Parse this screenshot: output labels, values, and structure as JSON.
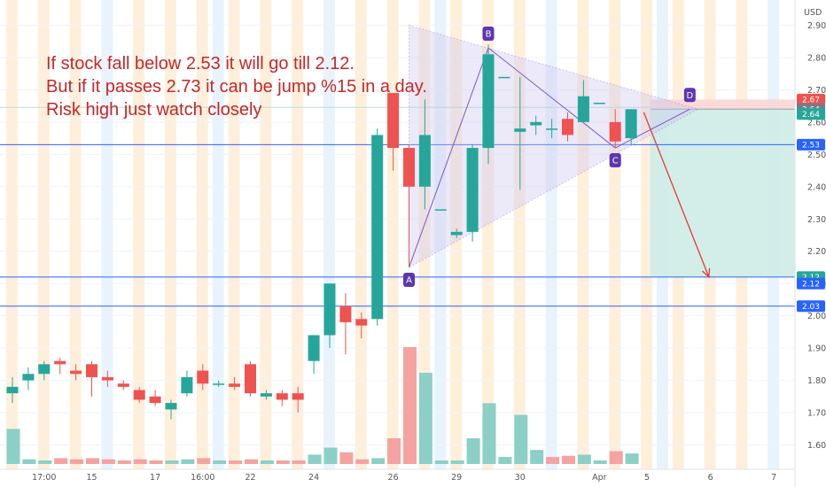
{
  "chart_data": {
    "type": "candlestick",
    "currency": "USD",
    "annotation": {
      "lines": [
        "If stock fall below 2.53 it will go till 2.12.",
        "But if it passes 2.73 it can be jump %15 in a day.",
        "Risk high just watch closely"
      ]
    },
    "ylim": [
      1.54,
      2.94
    ],
    "y_ticks": [
      "2.90",
      "2.80",
      "2.70",
      "2.60",
      "2.50",
      "2.40",
      "2.30",
      "2.20",
      "2.10",
      "2.00",
      "1.90",
      "1.80",
      "1.70",
      "1.60"
    ],
    "x_ticks": [
      {
        "i": 2,
        "label": "17:00"
      },
      {
        "i": 5,
        "label": "15"
      },
      {
        "i": 9,
        "label": "17"
      },
      {
        "i": 12,
        "label": "16:00"
      },
      {
        "i": 15,
        "label": "22"
      },
      {
        "i": 19,
        "label": "24"
      },
      {
        "i": 24,
        "label": "26"
      },
      {
        "i": 28,
        "label": "29"
      },
      {
        "i": 32,
        "label": "30"
      },
      {
        "i": 37,
        "label": "Apr"
      },
      {
        "i": 40,
        "label": "5"
      },
      {
        "i": 44,
        "label": "6"
      },
      {
        "i": 48,
        "label": "7"
      }
    ],
    "candles": [
      {
        "o": 1.76,
        "h": 1.81,
        "l": 1.73,
        "c": 1.78
      },
      {
        "o": 1.8,
        "h": 1.84,
        "l": 1.77,
        "c": 1.82
      },
      {
        "o": 1.82,
        "h": 1.86,
        "l": 1.8,
        "c": 1.85
      },
      {
        "o": 1.86,
        "h": 1.87,
        "l": 1.82,
        "c": 1.85
      },
      {
        "o": 1.83,
        "h": 1.85,
        "l": 1.8,
        "c": 1.82
      },
      {
        "o": 1.85,
        "h": 1.86,
        "l": 1.75,
        "c": 1.81
      },
      {
        "o": 1.81,
        "h": 1.83,
        "l": 1.78,
        "c": 1.8
      },
      {
        "o": 1.79,
        "h": 1.8,
        "l": 1.77,
        "c": 1.78
      },
      {
        "o": 1.77,
        "h": 1.78,
        "l": 1.73,
        "c": 1.74
      },
      {
        "o": 1.75,
        "h": 1.77,
        "l": 1.72,
        "c": 1.73
      },
      {
        "o": 1.71,
        "h": 1.74,
        "l": 1.68,
        "c": 1.73
      },
      {
        "o": 1.76,
        "h": 1.83,
        "l": 1.75,
        "c": 1.81
      },
      {
        "o": 1.83,
        "h": 1.85,
        "l": 1.77,
        "c": 1.79
      },
      {
        "o": 1.79,
        "h": 1.8,
        "l": 1.78,
        "c": 1.79
      },
      {
        "o": 1.79,
        "h": 1.81,
        "l": 1.77,
        "c": 1.78
      },
      {
        "o": 1.85,
        "h": 1.86,
        "l": 1.75,
        "c": 1.76
      },
      {
        "o": 1.75,
        "h": 1.77,
        "l": 1.74,
        "c": 1.76
      },
      {
        "o": 1.76,
        "h": 1.77,
        "l": 1.72,
        "c": 1.74
      },
      {
        "o": 1.76,
        "h": 1.78,
        "l": 1.7,
        "c": 1.74
      },
      {
        "o": 1.86,
        "h": 1.93,
        "l": 1.82,
        "c": 1.94
      },
      {
        "o": 1.94,
        "h": 2.1,
        "l": 1.9,
        "c": 2.1
      },
      {
        "o": 2.03,
        "h": 2.07,
        "l": 1.88,
        "c": 1.98
      },
      {
        "o": 1.99,
        "h": 2.01,
        "l": 1.93,
        "c": 1.97
      },
      {
        "o": 1.99,
        "h": 2.58,
        "l": 1.97,
        "c": 2.56
      },
      {
        "o": 2.69,
        "h": 2.69,
        "l": 2.45,
        "c": 2.52
      },
      {
        "o": 2.52,
        "h": 2.53,
        "l": 2.15,
        "c": 2.4
      },
      {
        "o": 2.4,
        "h": 2.67,
        "l": 2.33,
        "c": 2.56
      },
      {
        "o": 2.33,
        "h": 2.33,
        "l": 2.33,
        "c": 2.33
      },
      {
        "o": 2.25,
        "h": 2.27,
        "l": 2.24,
        "c": 2.26
      },
      {
        "o": 2.26,
        "h": 2.53,
        "l": 2.23,
        "c": 2.52
      },
      {
        "o": 2.52,
        "h": 2.84,
        "l": 2.47,
        "c": 2.81
      },
      {
        "o": 2.74,
        "h": 2.74,
        "l": 2.74,
        "c": 2.74
      },
      {
        "o": 2.57,
        "h": 2.74,
        "l": 2.39,
        "c": 2.58
      },
      {
        "o": 2.59,
        "h": 2.62,
        "l": 2.56,
        "c": 2.6
      },
      {
        "o": 2.58,
        "h": 2.61,
        "l": 2.55,
        "c": 2.58
      },
      {
        "o": 2.61,
        "h": 2.63,
        "l": 2.54,
        "c": 2.56
      },
      {
        "o": 2.6,
        "h": 2.73,
        "l": 2.6,
        "c": 2.68
      },
      {
        "o": 2.66,
        "h": 2.66,
        "l": 2.66,
        "c": 2.66
      },
      {
        "o": 2.6,
        "h": 2.64,
        "l": 2.52,
        "c": 2.54
      },
      {
        "o": 2.55,
        "h": 2.64,
        "l": 2.53,
        "c": 2.64
      }
    ],
    "volume": [
      {
        "v": 0.3,
        "up": true
      },
      {
        "v": 0.04,
        "up": true
      },
      {
        "v": 0.03,
        "up": true
      },
      {
        "v": 0.05,
        "up": false
      },
      {
        "v": 0.04,
        "up": false
      },
      {
        "v": 0.05,
        "up": false
      },
      {
        "v": 0.04,
        "up": false
      },
      {
        "v": 0.03,
        "up": false
      },
      {
        "v": 0.04,
        "up": false
      },
      {
        "v": 0.03,
        "up": false
      },
      {
        "v": 0.03,
        "up": true
      },
      {
        "v": 0.04,
        "up": true
      },
      {
        "v": 0.05,
        "up": false
      },
      {
        "v": 0.03,
        "up": true
      },
      {
        "v": 0.03,
        "up": false
      },
      {
        "v": 0.04,
        "up": false
      },
      {
        "v": 0.03,
        "up": true
      },
      {
        "v": 0.03,
        "up": false
      },
      {
        "v": 0.03,
        "up": false
      },
      {
        "v": 0.08,
        "up": true
      },
      {
        "v": 0.14,
        "up": true
      },
      {
        "v": 0.1,
        "up": false
      },
      {
        "v": 0.04,
        "up": false
      },
      {
        "v": 0.05,
        "up": true
      },
      {
        "v": 0.22,
        "up": false
      },
      {
        "v": 1.0,
        "up": false
      },
      {
        "v": 0.78,
        "up": true
      },
      {
        "v": 0.03,
        "up": true
      },
      {
        "v": 0.03,
        "up": true
      },
      {
        "v": 0.22,
        "up": true
      },
      {
        "v": 0.52,
        "up": true
      },
      {
        "v": 0.06,
        "up": true
      },
      {
        "v": 0.42,
        "up": true
      },
      {
        "v": 0.12,
        "up": true
      },
      {
        "v": 0.06,
        "up": false
      },
      {
        "v": 0.07,
        "up": false
      },
      {
        "v": 0.08,
        "up": true
      },
      {
        "v": 0.03,
        "up": true
      },
      {
        "v": 0.11,
        "up": false
      },
      {
        "v": 0.09,
        "up": true
      }
    ],
    "pattern": {
      "points": [
        {
          "label": "A",
          "i": 25,
          "price": 2.15
        },
        {
          "label": "B",
          "i": 30,
          "price": 2.83
        },
        {
          "label": "C",
          "i": 38,
          "price": 2.52
        },
        {
          "label": "D",
          "i": 42.7,
          "price": 2.64
        }
      ],
      "triangle_upper": [
        {
          "i": 25,
          "price": 2.9
        },
        {
          "i": 43.2,
          "price": 2.64
        }
      ],
      "triangle_lower": [
        {
          "i": 25,
          "price": 2.15
        },
        {
          "i": 43.2,
          "price": 2.64
        }
      ]
    },
    "horizontal_lines": [
      2.53,
      2.12,
      2.03
    ],
    "position": {
      "entry": 2.64,
      "stop": 2.67,
      "target": 2.12,
      "start_i": 40.2
    },
    "price_tags": [
      {
        "value": "2.67",
        "price": 2.67,
        "color": "#ef5350"
      },
      {
        "value": "2.64",
        "price": 2.64,
        "color": "#787b86"
      },
      {
        "value": "2.64",
        "price": 2.625,
        "color": "#26a69a"
      },
      {
        "value": "2.53",
        "price": 2.53,
        "color": "#2962ff"
      },
      {
        "value": "2.12",
        "price": 2.12,
        "color": "#26a69a"
      },
      {
        "value": "2.12",
        "price": 2.1,
        "color": "#2962ff"
      },
      {
        "value": "2.03",
        "price": 2.03,
        "color": "#2962ff"
      }
    ],
    "colors": {
      "up": "#26a69a",
      "down": "#ef5350",
      "up_volume": "#8ccfc6",
      "down_volume": "#f5a3a0",
      "session_band": "#fde9cf",
      "session_band_blue": "#e0effb",
      "triangle_fill": "#c9c3f0",
      "triangle_line": "#7e57c2",
      "hline": "#2962ff",
      "point_badge": "#5e35b1",
      "arrow": "#e53935",
      "profit_zone": "#d1ece8",
      "loss_zone": "#f9d6d5"
    }
  }
}
